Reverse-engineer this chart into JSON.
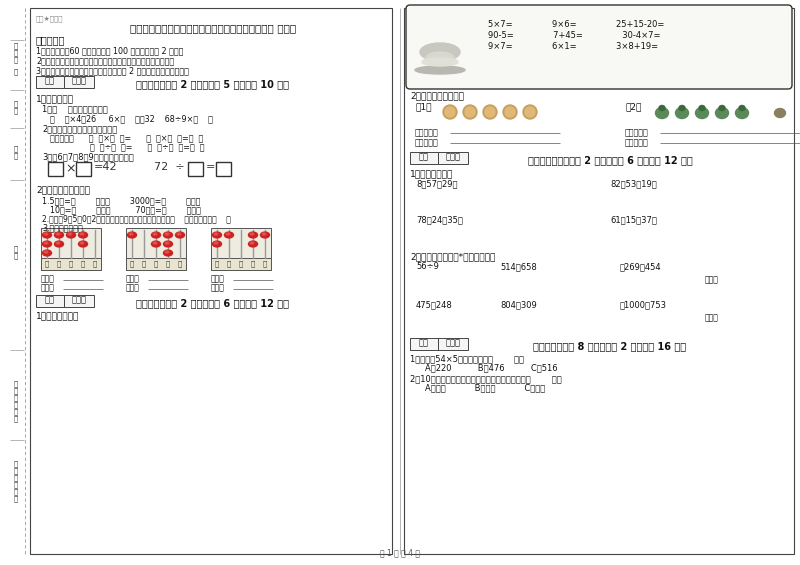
{
  "bg_color": "#ffffff",
  "title": "巴音郭楞蒙古自治州二年级数学上学期能力检测试卷 附答案",
  "watermark": "微密★自用册",
  "exam_notes_title": "考试须知：",
  "note1": "1．考试时间：60 分钟，满分为 100 分（含卷面分 2 分）。",
  "note2": "2．请首先按要求在试卷的指定位置填写您的姓名、班级、学号。",
  "note3": "3．不要在试卷上乱写乱画，卷面不整洁扣 2 分，密封线外请勿作答。",
  "sec1": "一、填空题（共 2 大题，每题 5 分，共计 10 分）",
  "sec2": "二、计算题（共 2 大题，每题 6 分，共计 12 分）",
  "sec3": "三、列竖式计算（共 2 大题，每题 6 分，共计 12 分）",
  "sec4": "四、选一选（共 8 小题，每题 2 分，共计 16 分）",
  "footer": "第 1 页 共 4 页",
  "score_label": "得分",
  "reviewer_label": "评卷人",
  "label_color": "#222222",
  "border_color": "#333333",
  "light_gray": "#bbbbbb",
  "box_fill": "#f0f0ee",
  "abacus_fill": "#eeebe0",
  "red_bead": "#cc2222",
  "rod_color": "#999999"
}
